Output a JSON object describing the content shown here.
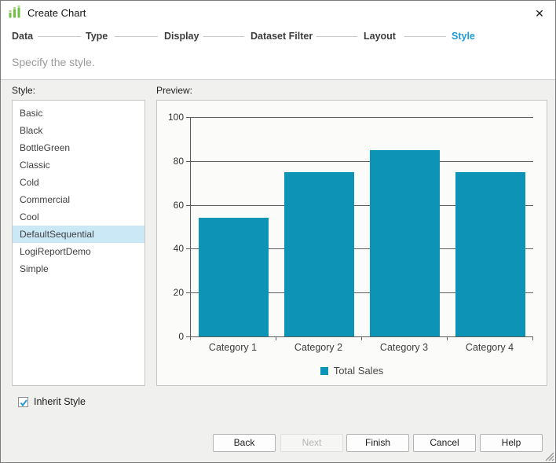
{
  "window": {
    "title": "Create Chart"
  },
  "icons": {
    "close": "✕",
    "app": "chart-bars-icon"
  },
  "steps": [
    {
      "label": "Data",
      "active": false
    },
    {
      "label": "Type",
      "active": false
    },
    {
      "label": "Display",
      "active": false
    },
    {
      "label": "Dataset Filter",
      "active": false
    },
    {
      "label": "Layout",
      "active": false
    },
    {
      "label": "Style",
      "active": true
    }
  ],
  "subtitle": "Specify the style.",
  "style_panel": {
    "label": "Style:",
    "items": [
      "Basic",
      "Black",
      "BottleGreen",
      "Classic",
      "Cold",
      "Commercial",
      "Cool",
      "DefaultSequential",
      "LogiReportDemo",
      "Simple"
    ],
    "selected": "DefaultSequential"
  },
  "preview_panel": {
    "label": "Preview:"
  },
  "chart_data": {
    "type": "bar",
    "categories": [
      "Category 1",
      "Category 2",
      "Category 3",
      "Category 4"
    ],
    "series": [
      {
        "name": "Total Sales",
        "values": [
          54,
          75,
          85,
          75
        ]
      }
    ],
    "title": "",
    "xlabel": "",
    "ylabel": "",
    "ylim": [
      0,
      100
    ],
    "yticks": [
      0,
      20,
      40,
      60,
      80,
      100
    ],
    "grid": true,
    "legend_position": "bottom",
    "bar_color": "#0d93b5"
  },
  "inherit_style": {
    "label": "Inherit Style",
    "checked": true
  },
  "footer_buttons": [
    {
      "label": "Back",
      "enabled": true
    },
    {
      "label": "Next",
      "enabled": false
    },
    {
      "label": "Finish",
      "enabled": true
    },
    {
      "label": "Cancel",
      "enabled": true
    },
    {
      "label": "Help",
      "enabled": true
    }
  ],
  "colors": {
    "accent": "#1e9bd7",
    "bar": "#0d93b5",
    "selection": "#cbe8f7",
    "grid": "#5e5e5e",
    "icon_green": "#72bf44"
  }
}
